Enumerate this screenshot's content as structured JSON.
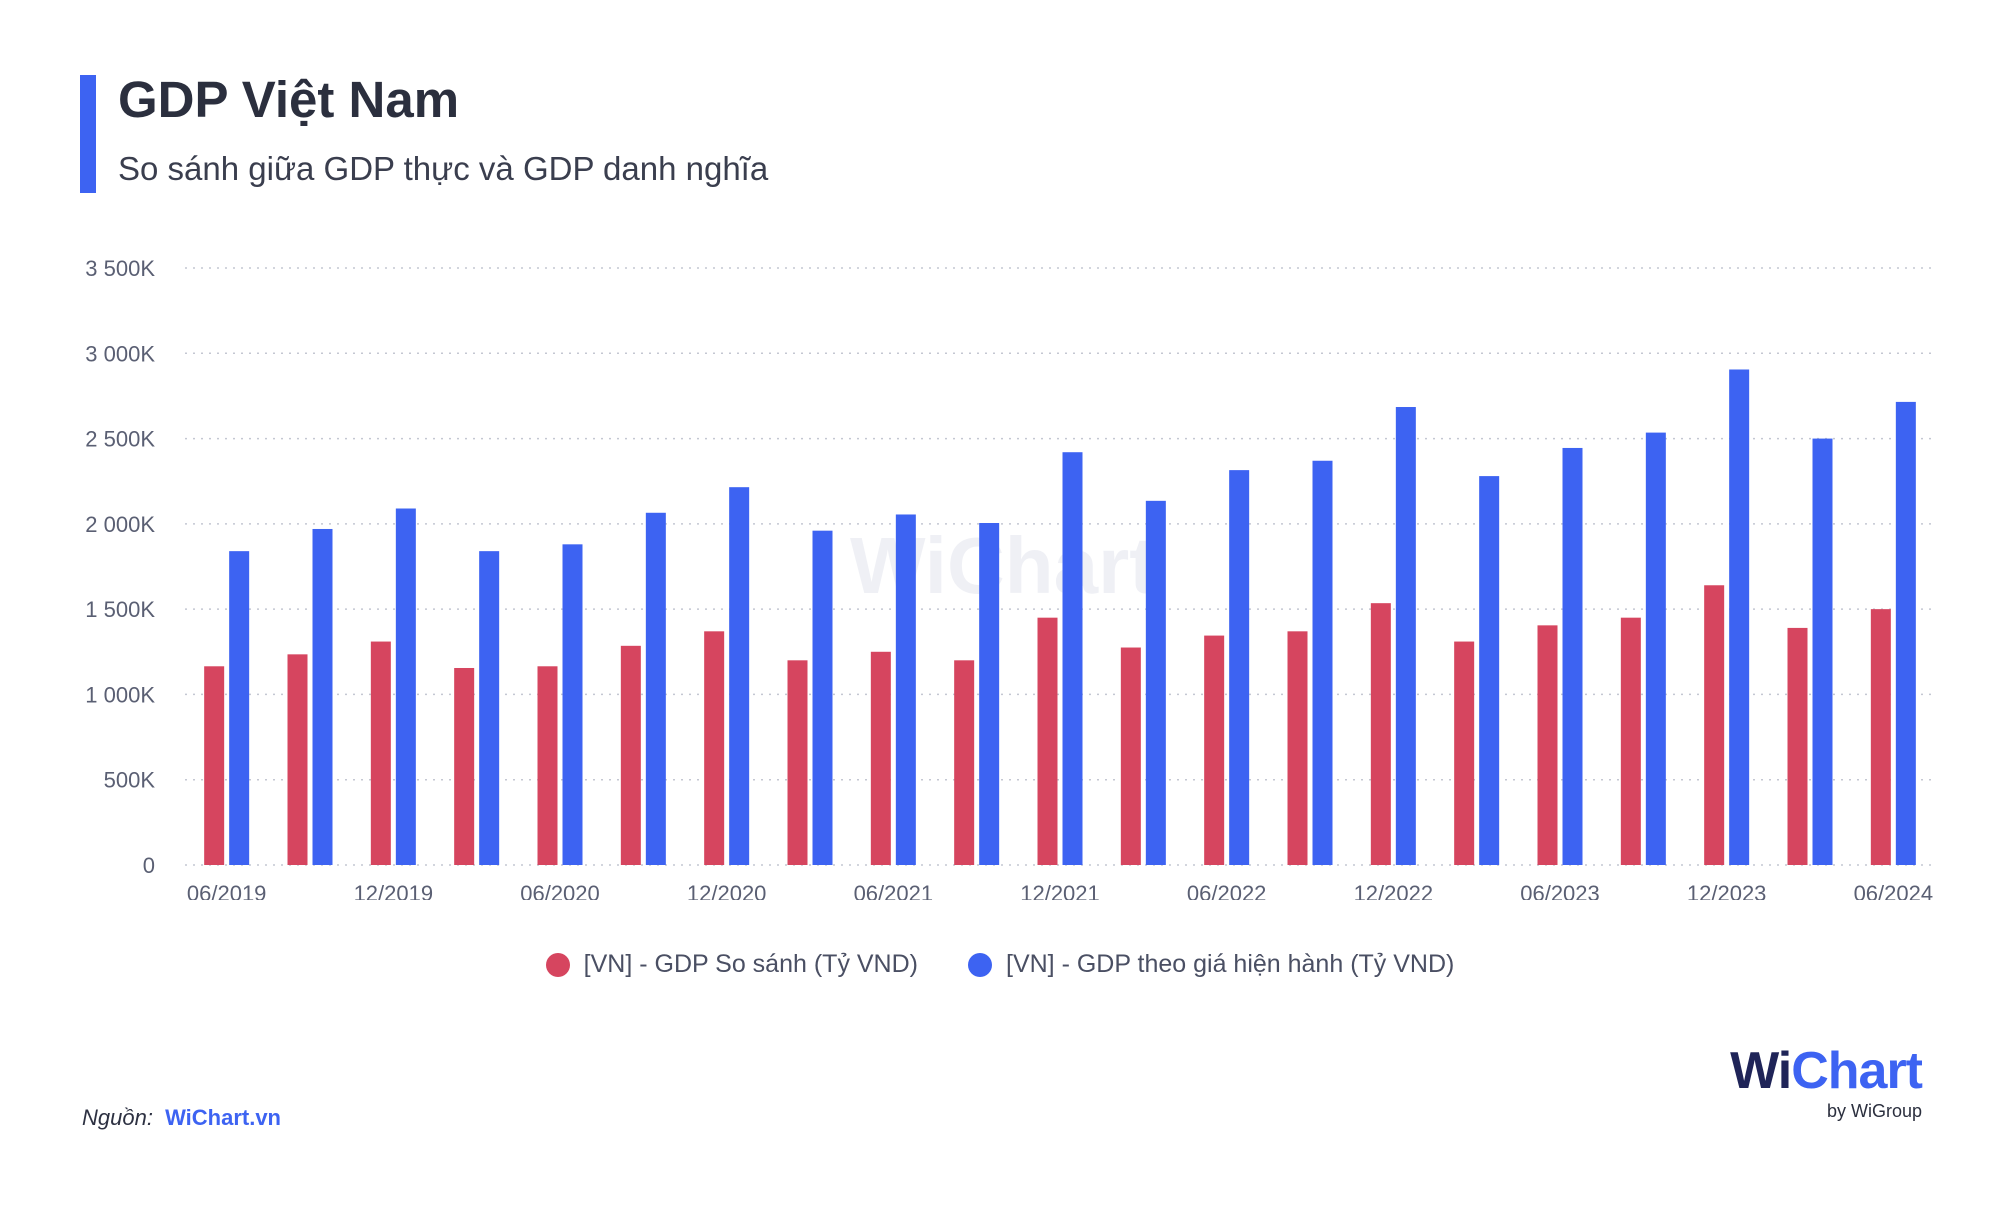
{
  "header": {
    "title": "GDP Việt Nam",
    "subtitle": "So sánh giữa GDP thực và GDP danh nghĩa",
    "accent_color": "#3d63f2"
  },
  "watermark": "WiChart",
  "chart_data": {
    "type": "bar",
    "title": "GDP Việt Nam",
    "subtitle": "So sánh giữa GDP thực và GDP danh nghĩa",
    "categories": [
      "06/2019",
      "09/2019",
      "12/2019",
      "03/2020",
      "06/2020",
      "09/2020",
      "12/2020",
      "03/2021",
      "06/2021",
      "09/2021",
      "12/2021",
      "03/2022",
      "06/2022",
      "09/2022",
      "12/2022",
      "03/2023",
      "06/2023",
      "09/2023",
      "12/2023",
      "03/2024",
      "06/2024"
    ],
    "x_tick_labels": [
      "06/2019",
      "12/2019",
      "06/2020",
      "12/2020",
      "06/2021",
      "12/2021",
      "06/2022",
      "12/2022",
      "06/2023",
      "12/2023",
      "06/2024"
    ],
    "ylim": [
      0,
      3500000
    ],
    "y_ticks": [
      0,
      500000,
      1000000,
      1500000,
      2000000,
      2500000,
      3000000,
      3500000
    ],
    "y_tick_labels": [
      "0",
      "500K",
      "1 000K",
      "1 500K",
      "2 000K",
      "2 500K",
      "3 000K",
      "3 500K"
    ],
    "grid": true,
    "legend_position": "bottom-center",
    "series": [
      {
        "name": "[VN] - GDP So sánh (Tỷ VND)",
        "color": "#d6455f",
        "values": [
          1165000,
          1235000,
          1310000,
          1155000,
          1165000,
          1285000,
          1370000,
          1200000,
          1250000,
          1200000,
          1450000,
          1275000,
          1345000,
          1370000,
          1535000,
          1310000,
          1405000,
          1450000,
          1640000,
          1390000,
          1500000
        ]
      },
      {
        "name": "[VN] - GDP theo giá hiện hành (Tỷ VND)",
        "color": "#3d63f2",
        "values": [
          1840000,
          1970000,
          2090000,
          1840000,
          1880000,
          2065000,
          2215000,
          1960000,
          2055000,
          2005000,
          2420000,
          2135000,
          2315000,
          2370000,
          2685000,
          2280000,
          2445000,
          2535000,
          2905000,
          2500000,
          2715000
        ]
      }
    ]
  },
  "footer": {
    "source_label": "Nguồn:",
    "source_link": "WiChart.vn",
    "source_link_color": "#3d63f2",
    "brand_w": "Wi",
    "brand_chart": "Chart",
    "brand_by": "by WiGroup"
  }
}
